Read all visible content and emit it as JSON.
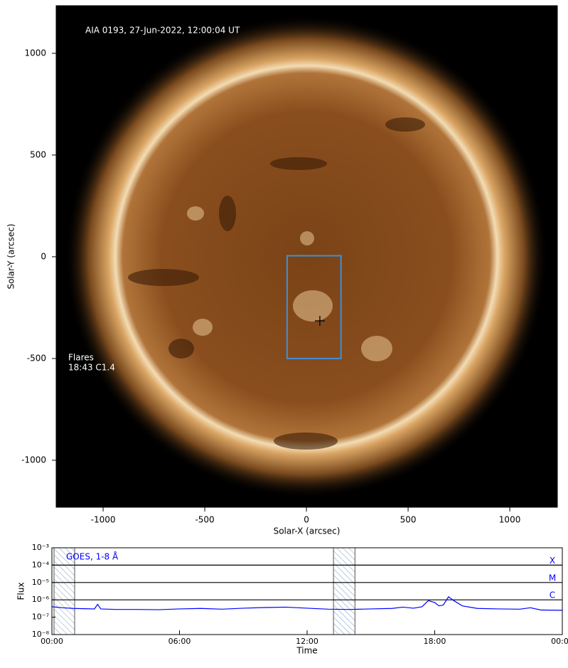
{
  "chart_data": [
    {
      "type": "image",
      "title": "AIA 0193, 27-Jun-2022, 12:00:04 UT",
      "annotations": [
        "Flares",
        "18:43 C1.4"
      ],
      "xlabel": "Solar-X (arcsec)",
      "ylabel": "Solar-Y (arcsec)",
      "xlim": [
        -1231,
        1234
      ],
      "ylim": [
        -1231,
        1234
      ],
      "xticks": [
        -1000,
        -500,
        0,
        500,
        1000
      ],
      "yticks": [
        -1000,
        -500,
        0,
        500,
        1000
      ],
      "box": {
        "x": [
          -95,
          170
        ],
        "y": [
          -500,
          5
        ],
        "color": "#3d8fdc"
      },
      "marker": {
        "x": 66,
        "y": -315
      }
    },
    {
      "type": "line",
      "xlabel": "Time",
      "ylabel": "Flux",
      "xlim": [
        0,
        24
      ],
      "ylim": [
        1e-08,
        0.001
      ],
      "log_scale": true,
      "xticks": [
        {
          "value": 0,
          "label": "00:00"
        },
        {
          "value": 6,
          "label": "06:00"
        },
        {
          "value": 12,
          "label": "12:00"
        },
        {
          "value": 18,
          "label": "18:00"
        },
        {
          "value": 24,
          "label": "00:00"
        }
      ],
      "yticks": [
        {
          "value": 1e-08,
          "label": "10⁻⁸"
        },
        {
          "value": 1e-07,
          "label": "10⁻⁷"
        },
        {
          "value": 1e-06,
          "label": "10⁻⁶"
        },
        {
          "value": 1e-05,
          "label": "10⁻⁵"
        },
        {
          "value": 0.0001,
          "label": "10⁻⁴"
        },
        {
          "value": 0.001,
          "label": "10⁻³"
        }
      ],
      "levels": [
        {
          "value": 0.0001,
          "label": "X"
        },
        {
          "value": 1e-05,
          "label": "M"
        },
        {
          "value": 1e-06,
          "label": "C"
        }
      ],
      "shaded_intervals": [
        [
          0.1,
          1.07
        ],
        [
          13.24,
          14.25
        ]
      ],
      "x": [
        0,
        0.5,
        1,
        2,
        2.15,
        2.3,
        3,
        4,
        5,
        6,
        7,
        8,
        9,
        10,
        11,
        12,
        13,
        14,
        15,
        16,
        16.5,
        17,
        17.4,
        17.7,
        18,
        18.2,
        18.4,
        18.65,
        18.9,
        19.3,
        20,
        21,
        22,
        22.5,
        23,
        24
      ],
      "series": [
        {
          "name": "GOES, 1-8 Å",
          "color": "#0000ff",
          "values": [
            4e-07,
            3.5e-07,
            3.2e-07,
            3e-07,
            5.5e-07,
            3e-07,
            2.8e-07,
            2.8e-07,
            2.7e-07,
            3e-07,
            3.2e-07,
            2.9e-07,
            3.3e-07,
            3.6e-07,
            3.8e-07,
            3.3e-07,
            2.9e-07,
            2.8e-07,
            3e-07,
            3.2e-07,
            3.8e-07,
            3.3e-07,
            4e-07,
            9e-07,
            7e-07,
            4.5e-07,
            5e-07,
            1.5e-06,
            9e-07,
            4.5e-07,
            3.2e-07,
            3e-07,
            2.9e-07,
            3.5e-07,
            2.6e-07,
            2.5e-07
          ]
        }
      ]
    }
  ]
}
